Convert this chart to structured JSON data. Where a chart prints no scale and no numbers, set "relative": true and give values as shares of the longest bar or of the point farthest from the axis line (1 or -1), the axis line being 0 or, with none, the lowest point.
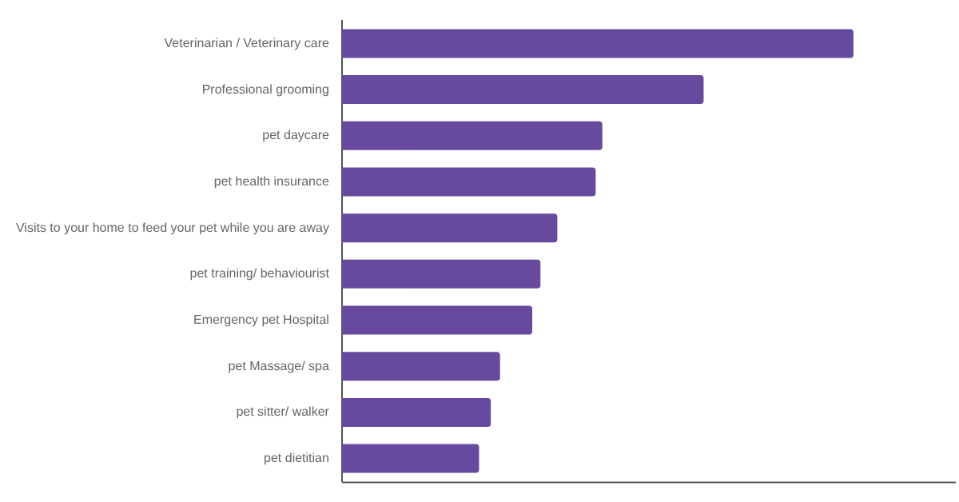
{
  "chart_data": {
    "type": "bar",
    "orientation": "horizontal",
    "relative": true,
    "legend": false,
    "categories": [
      "Veterinarian / Veterinary care",
      "Professional grooming",
      "pet daycare",
      "pet health insurance",
      "Visits to your home to feed your pet while you are away",
      "pet training/ behaviourist",
      "Emergency pet Hospital",
      "pet Massage/ spa",
      "pet sitter/ walker",
      "pet dietitian"
    ],
    "values": [
      1,
      0.707,
      0.509,
      0.496,
      0.421,
      0.388,
      0.372,
      0.309,
      0.291,
      0.268
    ],
    "color": "#674a9e"
  }
}
